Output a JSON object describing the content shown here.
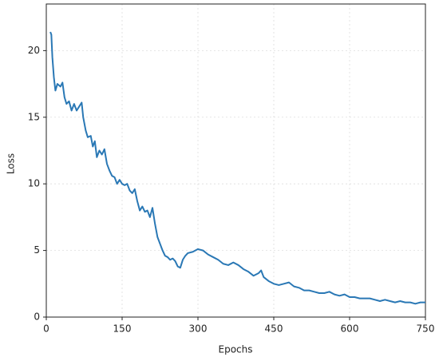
{
  "chart_data": {
    "type": "line",
    "x_label": "Epochs",
    "y_label": "Loss",
    "x": [
      8,
      10,
      12,
      15,
      18,
      22,
      28,
      32,
      36,
      40,
      45,
      50,
      55,
      60,
      65,
      70,
      73,
      78,
      82,
      88,
      92,
      96,
      100,
      105,
      110,
      115,
      120,
      125,
      130,
      135,
      140,
      145,
      150,
      155,
      160,
      165,
      170,
      175,
      180,
      185,
      190,
      195,
      200,
      205,
      210,
      215,
      220,
      225,
      230,
      235,
      240,
      245,
      250,
      255,
      260,
      265,
      270,
      275,
      280,
      290,
      300,
      310,
      320,
      330,
      340,
      350,
      360,
      370,
      380,
      390,
      400,
      410,
      420,
      425,
      430,
      440,
      450,
      460,
      470,
      480,
      490,
      500,
      510,
      520,
      530,
      540,
      550,
      560,
      570,
      580,
      590,
      600,
      610,
      620,
      630,
      640,
      650,
      660,
      670,
      680,
      690,
      700,
      710,
      720,
      730,
      740,
      750
    ],
    "series": [
      {
        "name": "Loss",
        "color": "#2a78b5",
        "values": [
          21.4,
          21.2,
          19.5,
          18,
          17.0,
          17.5,
          17.3,
          17.6,
          16.5,
          16.0,
          16.2,
          15.5,
          16.0,
          15.5,
          15.8,
          16.1,
          15.0,
          14.0,
          13.5,
          13.6,
          12.8,
          13.2,
          12.0,
          12.5,
          12.2,
          12.6,
          11.5,
          11.0,
          10.6,
          10.5,
          10.0,
          10.3,
          10.0,
          9.9,
          10.0,
          9.5,
          9.3,
          9.6,
          8.7,
          8.0,
          8.3,
          7.9,
          8.0,
          7.5,
          8.2,
          7.0,
          6.0,
          5.5,
          5.0,
          4.6,
          4.5,
          4.3,
          4.4,
          4.2,
          3.8,
          3.7,
          4.3,
          4.6,
          4.8,
          4.9,
          5.1,
          5.0,
          4.7,
          4.5,
          4.3,
          4.0,
          3.9,
          4.1,
          3.9,
          3.6,
          3.4,
          3.1,
          3.3,
          3.5,
          3.0,
          2.7,
          2.5,
          2.4,
          2.5,
          2.6,
          2.3,
          2.2,
          2.0,
          2.0,
          1.9,
          1.8,
          1.8,
          1.9,
          1.7,
          1.6,
          1.7,
          1.5,
          1.5,
          1.4,
          1.4,
          1.4,
          1.3,
          1.2,
          1.3,
          1.2,
          1.1,
          1.2,
          1.1,
          1.1,
          1.0,
          1.1,
          1.1
        ]
      }
    ],
    "xlim": [
      0,
      750
    ],
    "ylim": [
      0,
      23.5
    ],
    "xticks": [
      0,
      150,
      300,
      450,
      600,
      750
    ],
    "yticks": [
      0,
      5,
      10,
      15,
      20
    ],
    "grid": true
  }
}
